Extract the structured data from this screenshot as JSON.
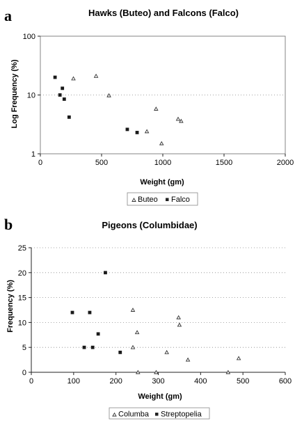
{
  "chart_data": [
    {
      "panel": "a",
      "type": "scatter",
      "title": "Hawks (Buteo) and Falcons (Falco)",
      "xlabel": "Weight (gm)",
      "ylabel": "Log Frequency (%)",
      "xlim": [
        0,
        2000
      ],
      "ylim": [
        1,
        100
      ],
      "yscale": "log",
      "xticks": [
        "0",
        "500",
        "1000",
        "1500",
        "2000"
      ],
      "yticks": [
        "1",
        "10",
        "100"
      ],
      "grid": "dotted line at y=10",
      "legend": "bottom",
      "series": [
        {
          "name": "Buteo",
          "marker": "open-triangle",
          "points": [
            [
              270,
              19
            ],
            [
              455,
              21
            ],
            [
              560,
              9.8
            ],
            [
              870,
              2.4
            ],
            [
              945,
              5.8
            ],
            [
              990,
              1.5
            ],
            [
              1125,
              3.9
            ],
            [
              1150,
              3.6
            ]
          ]
        },
        {
          "name": "Falco",
          "marker": "filled-square",
          "points": [
            [
              120,
              20
            ],
            [
              160,
              10
            ],
            [
              180,
              13
            ],
            [
              195,
              8.5
            ],
            [
              235,
              4.2
            ],
            [
              710,
              2.6
            ],
            [
              790,
              2.3
            ]
          ]
        }
      ]
    },
    {
      "panel": "b",
      "type": "scatter",
      "title": "Pigeons (Columbidae)",
      "xlabel": "Weight (gm)",
      "ylabel": "Frequency (%)",
      "xlim": [
        0,
        600
      ],
      "ylim": [
        0,
        25
      ],
      "xticks": [
        "0",
        "100",
        "200",
        "300",
        "400",
        "500",
        "600"
      ],
      "yticks": [
        "0",
        "5",
        "10",
        "15",
        "20",
        "25"
      ],
      "grid": "dotted horizontal lines",
      "legend": "bottom",
      "series": [
        {
          "name": "Columba",
          "marker": "open-triangle",
          "points": [
            [
              240,
              12.5
            ],
            [
              240,
              5
            ],
            [
              250,
              8
            ],
            [
              252,
              0
            ],
            [
              295,
              0
            ],
            [
              320,
              4
            ],
            [
              348,
              11
            ],
            [
              350,
              9.5
            ],
            [
              370,
              2.5
            ],
            [
              465,
              0
            ],
            [
              490,
              2.8
            ]
          ]
        },
        {
          "name": "Streptopelia",
          "marker": "filled-square",
          "points": [
            [
              97,
              12
            ],
            [
              125,
              5
            ],
            [
              138,
              12
            ],
            [
              145,
              5
            ],
            [
              158,
              7.7
            ],
            [
              175,
              20
            ],
            [
              210,
              4
            ]
          ]
        }
      ]
    }
  ]
}
